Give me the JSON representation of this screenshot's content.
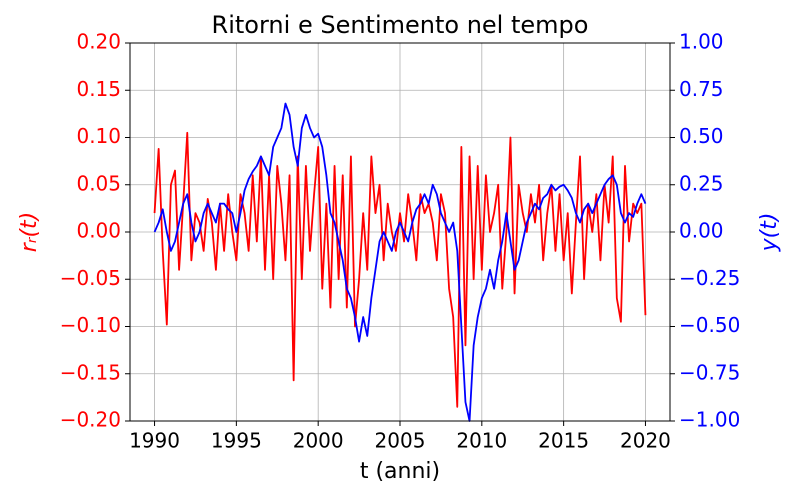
{
  "chart_data": {
    "type": "line",
    "title": "Ritorni e Sentimento nel tempo",
    "x_label": "t (anni)",
    "y_label": "rᵣ(t)",
    "y2_label": "y(t)",
    "x": [
      1990,
      1990.25,
      1990.5,
      1990.75,
      1991,
      1991.25,
      1991.5,
      1991.75,
      1992,
      1992.25,
      1992.5,
      1992.75,
      1993,
      1993.25,
      1993.5,
      1993.75,
      1994,
      1994.25,
      1994.5,
      1994.75,
      1995,
      1995.25,
      1995.5,
      1995.75,
      1996,
      1996.25,
      1996.5,
      1996.75,
      1997,
      1997.25,
      1997.5,
      1997.75,
      1998,
      1998.25,
      1998.5,
      1998.75,
      1999,
      1999.25,
      1999.5,
      1999.75,
      2000,
      2000.25,
      2000.5,
      2000.75,
      2001,
      2001.25,
      2001.5,
      2001.75,
      2002,
      2002.25,
      2002.5,
      2002.75,
      2003,
      2003.25,
      2003.5,
      2003.75,
      2004,
      2004.25,
      2004.5,
      2004.75,
      2005,
      2005.25,
      2005.5,
      2005.75,
      2006,
      2006.25,
      2006.5,
      2006.75,
      2007,
      2007.25,
      2007.5,
      2007.75,
      2008,
      2008.25,
      2008.5,
      2008.75,
      2009,
      2009.25,
      2009.5,
      2009.75,
      2010,
      2010.25,
      2010.5,
      2010.75,
      2011,
      2011.25,
      2011.5,
      2011.75,
      2012,
      2012.25,
      2012.5,
      2012.75,
      2013,
      2013.25,
      2013.5,
      2013.75,
      2014,
      2014.25,
      2014.5,
      2014.75,
      2015,
      2015.25,
      2015.5,
      2015.75,
      2016,
      2016.25,
      2016.5,
      2016.75,
      2017,
      2017.25,
      2017.5,
      2017.75,
      2018,
      2018.25,
      2018.5,
      2018.75,
      2019,
      2019.25,
      2019.5,
      2019.75,
      2020
    ],
    "series": [
      {
        "color": "#ff0000",
        "values": [
          0.02,
          0.088,
          -0.02,
          -0.098,
          0.05,
          0.065,
          -0.04,
          0.03,
          0.105,
          -0.03,
          0.02,
          0.01,
          -0.02,
          0.035,
          0.01,
          -0.04,
          0.03,
          -0.02,
          0.04,
          0.0,
          -0.03,
          0.04,
          0.02,
          -0.02,
          0.06,
          -0.01,
          0.08,
          -0.04,
          0.06,
          -0.05,
          0.07,
          0.03,
          -0.03,
          0.06,
          -0.157,
          0.08,
          -0.05,
          0.07,
          -0.02,
          0.04,
          0.09,
          -0.06,
          0.03,
          -0.08,
          0.07,
          -0.05,
          0.06,
          -0.08,
          0.08,
          -0.1,
          -0.05,
          0.02,
          -0.04,
          0.08,
          0.02,
          0.05,
          -0.03,
          0.03,
          0.0,
          -0.02,
          0.02,
          -0.01,
          0.04,
          0.01,
          -0.03,
          0.04,
          0.02,
          0.03,
          0.01,
          -0.03,
          0.04,
          0.02,
          -0.06,
          -0.09,
          -0.185,
          0.09,
          -0.12,
          0.08,
          -0.05,
          0.07,
          -0.04,
          0.06,
          0.0,
          0.02,
          0.05,
          -0.06,
          0.0,
          0.1,
          -0.065,
          0.05,
          0.02,
          0.0,
          0.04,
          0.01,
          0.05,
          -0.03,
          0.02,
          0.05,
          -0.02,
          0.04,
          -0.03,
          0.02,
          -0.065,
          0.01,
          0.08,
          -0.05,
          0.03,
          0.0,
          0.04,
          -0.03,
          0.05,
          0.01,
          0.08,
          -0.07,
          -0.095,
          0.07,
          -0.01,
          0.03,
          0.02,
          0.03,
          -0.088
        ]
      },
      {
        "color": "#0000ff",
        "axis": "y2",
        "values": [
          0.0,
          0.05,
          0.12,
          0.0,
          -0.1,
          -0.05,
          0.05,
          0.15,
          0.2,
          0.05,
          -0.05,
          0.0,
          0.1,
          0.15,
          0.1,
          0.05,
          0.15,
          0.15,
          0.12,
          0.1,
          0.0,
          0.1,
          0.22,
          0.28,
          0.32,
          0.35,
          0.4,
          0.35,
          0.3,
          0.45,
          0.5,
          0.55,
          0.68,
          0.62,
          0.45,
          0.35,
          0.55,
          0.62,
          0.55,
          0.5,
          0.52,
          0.45,
          0.3,
          0.1,
          0.05,
          -0.05,
          -0.15,
          -0.3,
          -0.35,
          -0.45,
          -0.58,
          -0.45,
          -0.55,
          -0.35,
          -0.2,
          -0.05,
          0.0,
          -0.05,
          -0.1,
          0.0,
          0.05,
          0.0,
          -0.05,
          0.05,
          0.12,
          0.15,
          0.2,
          0.15,
          0.25,
          0.2,
          0.1,
          0.05,
          0.0,
          0.05,
          -0.1,
          -0.5,
          -0.9,
          -1.0,
          -0.6,
          -0.45,
          -0.35,
          -0.3,
          -0.2,
          -0.3,
          -0.15,
          -0.05,
          0.1,
          -0.05,
          -0.2,
          -0.15,
          -0.05,
          0.05,
          0.1,
          0.15,
          0.12,
          0.18,
          0.2,
          0.25,
          0.22,
          0.24,
          0.25,
          0.22,
          0.18,
          0.1,
          0.05,
          0.12,
          0.15,
          0.1,
          0.15,
          0.2,
          0.25,
          0.28,
          0.3,
          0.25,
          0.1,
          0.05,
          0.1,
          0.08,
          0.15,
          0.2,
          0.15
        ]
      }
    ],
    "xlim": [
      1988.5,
      2021.5
    ],
    "xticks": [
      1990,
      1995,
      2000,
      2005,
      2010,
      2015,
      2020
    ],
    "ylim": [
      -0.2,
      0.2
    ],
    "yticks": [
      {
        "value": -0.2,
        "label": "−0.20"
      },
      {
        "value": -0.15,
        "label": "−0.15"
      },
      {
        "value": -0.1,
        "label": "−0.10"
      },
      {
        "value": -0.05,
        "label": "−0.05"
      },
      {
        "value": 0,
        "label": "0.00"
      },
      {
        "value": 0.05,
        "label": "0.05"
      },
      {
        "value": 0.1,
        "label": "0.10"
      },
      {
        "value": 0.15,
        "label": "0.15"
      },
      {
        "value": 0.2,
        "label": "0.20"
      }
    ],
    "y2lim": [
      -1,
      1
    ],
    "y2ticks": [
      {
        "value": -1,
        "label": "−1.00"
      },
      {
        "value": -0.75,
        "label": "−0.75"
      },
      {
        "value": -0.5,
        "label": "−0.50"
      },
      {
        "value": -0.25,
        "label": "−0.25"
      },
      {
        "value": 0,
        "label": "0.00"
      },
      {
        "value": 0.25,
        "label": "0.25"
      },
      {
        "value": 0.5,
        "label": "0.50"
      },
      {
        "value": 0.75,
        "label": "0.75"
      },
      {
        "value": 1,
        "label": "1.00"
      }
    ],
    "grid": true
  }
}
